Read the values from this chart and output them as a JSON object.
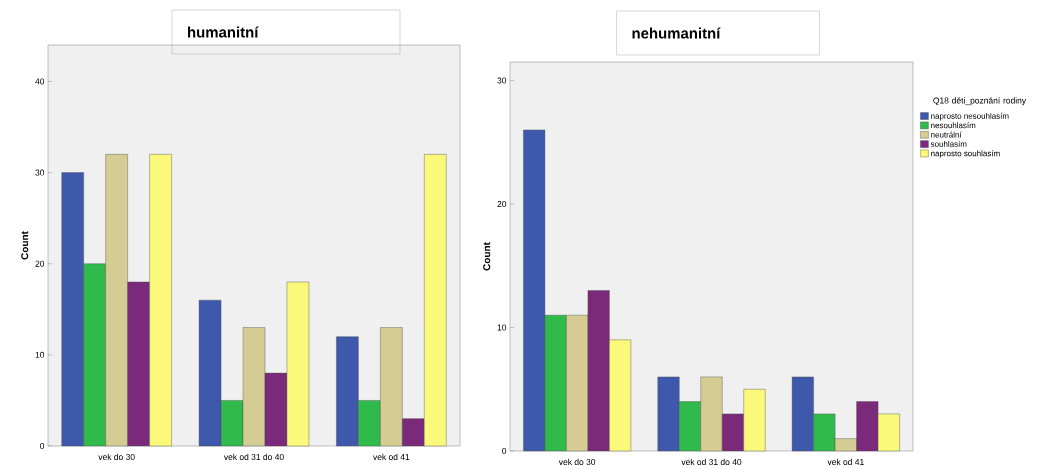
{
  "chart_data": [
    {
      "type": "bar",
      "title": "humanitní",
      "ylabel": "Count",
      "categories": [
        "vek do 30",
        "vek od 31 do 40",
        "vek od 41"
      ],
      "ylim": [
        0,
        44
      ],
      "yticks": [
        0,
        10,
        20,
        30,
        40
      ],
      "grid": false,
      "legend": false,
      "series": [
        {
          "color": "#3e58ac",
          "values": [
            30,
            16,
            12
          ]
        },
        {
          "color": "#2fba4b",
          "values": [
            20,
            5,
            5
          ]
        },
        {
          "color": "#d4cc93",
          "values": [
            32,
            13,
            13
          ]
        },
        {
          "color": "#7b2a7b",
          "values": [
            18,
            8,
            3
          ]
        },
        {
          "color": "#fbf97a",
          "values": [
            32,
            18,
            32
          ]
        }
      ]
    },
    {
      "type": "bar",
      "title": "nehumanitní",
      "ylabel": "Count",
      "legend_title": "Q18 děti_poznání rodiny",
      "categories": [
        "vek do 30",
        "vek od 31 do 40",
        "vek od 41"
      ],
      "ylim": [
        0,
        31.5
      ],
      "yticks": [
        0,
        10,
        20,
        30
      ],
      "grid": false,
      "legend": "right",
      "series": [
        {
          "name": "naprosto nesouhlasím",
          "color": "#3e58ac",
          "values": [
            26,
            6,
            6
          ]
        },
        {
          "name": "nesouhlasím",
          "color": "#2fba4b",
          "values": [
            11,
            4,
            3
          ]
        },
        {
          "name": "neutrální",
          "color": "#d4cc93",
          "values": [
            11,
            6,
            1
          ]
        },
        {
          "name": "souhlasím",
          "color": "#7b2a7b",
          "values": [
            13,
            3,
            4
          ]
        },
        {
          "name": "naprosto souhlasím",
          "color": "#fbf97a",
          "values": [
            9,
            5,
            3
          ]
        }
      ]
    }
  ]
}
